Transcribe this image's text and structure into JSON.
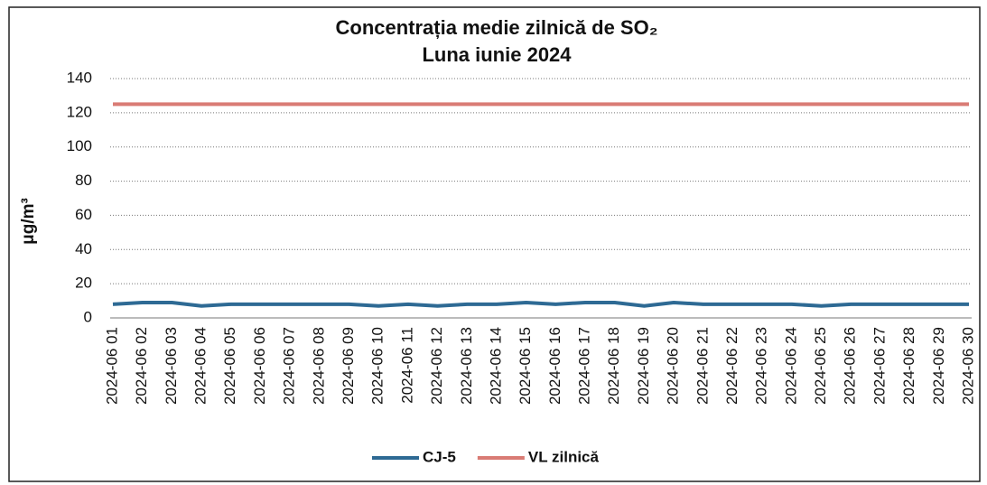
{
  "chart_data": {
    "type": "line",
    "title": "Concentrația medie zilnică de SO₂",
    "subtitle": "Luna iunie 2024",
    "y_label": "μg/m³",
    "categories": [
      "2024-06 01",
      "2024-06 02",
      "2024-06 03",
      "2024-06 04",
      "2024-06 05",
      "2024-06 06",
      "2024-06 07",
      "2024-06 08",
      "2024-06 09",
      "2024-06 10",
      "2024-06 11",
      "2024-06 12",
      "2024-06 13",
      "2024-06 14",
      "2024-06 15",
      "2024-06 16",
      "2024-06 17",
      "2024-06 18",
      "2024-06 19",
      "2024-06 20",
      "2024-06 21",
      "2024-06 22",
      "2024-06 23",
      "2024-06 24",
      "2024-06 25",
      "2024-06 26",
      "2024-06 27",
      "2024-06 28",
      "2024-06 29",
      "2024-06 30"
    ],
    "series": [
      {
        "name": "CJ-5",
        "color": "#2e6a94",
        "values": [
          8,
          9,
          9,
          7,
          8,
          8,
          8,
          8,
          8,
          7,
          8,
          7,
          8,
          8,
          9,
          8,
          9,
          9,
          7,
          9,
          8,
          8,
          8,
          8,
          7,
          8,
          8,
          8,
          8,
          8
        ]
      },
      {
        "name": "VL zilnică",
        "color": "#d97b74",
        "values": [
          125,
          125,
          125,
          125,
          125,
          125,
          125,
          125,
          125,
          125,
          125,
          125,
          125,
          125,
          125,
          125,
          125,
          125,
          125,
          125,
          125,
          125,
          125,
          125,
          125,
          125,
          125,
          125,
          125,
          125
        ]
      }
    ],
    "ylim": [
      0,
      140
    ],
    "yticks": [
      0,
      20,
      40,
      60,
      80,
      100,
      120,
      140
    ],
    "grid": true,
    "legend": "bottom"
  }
}
